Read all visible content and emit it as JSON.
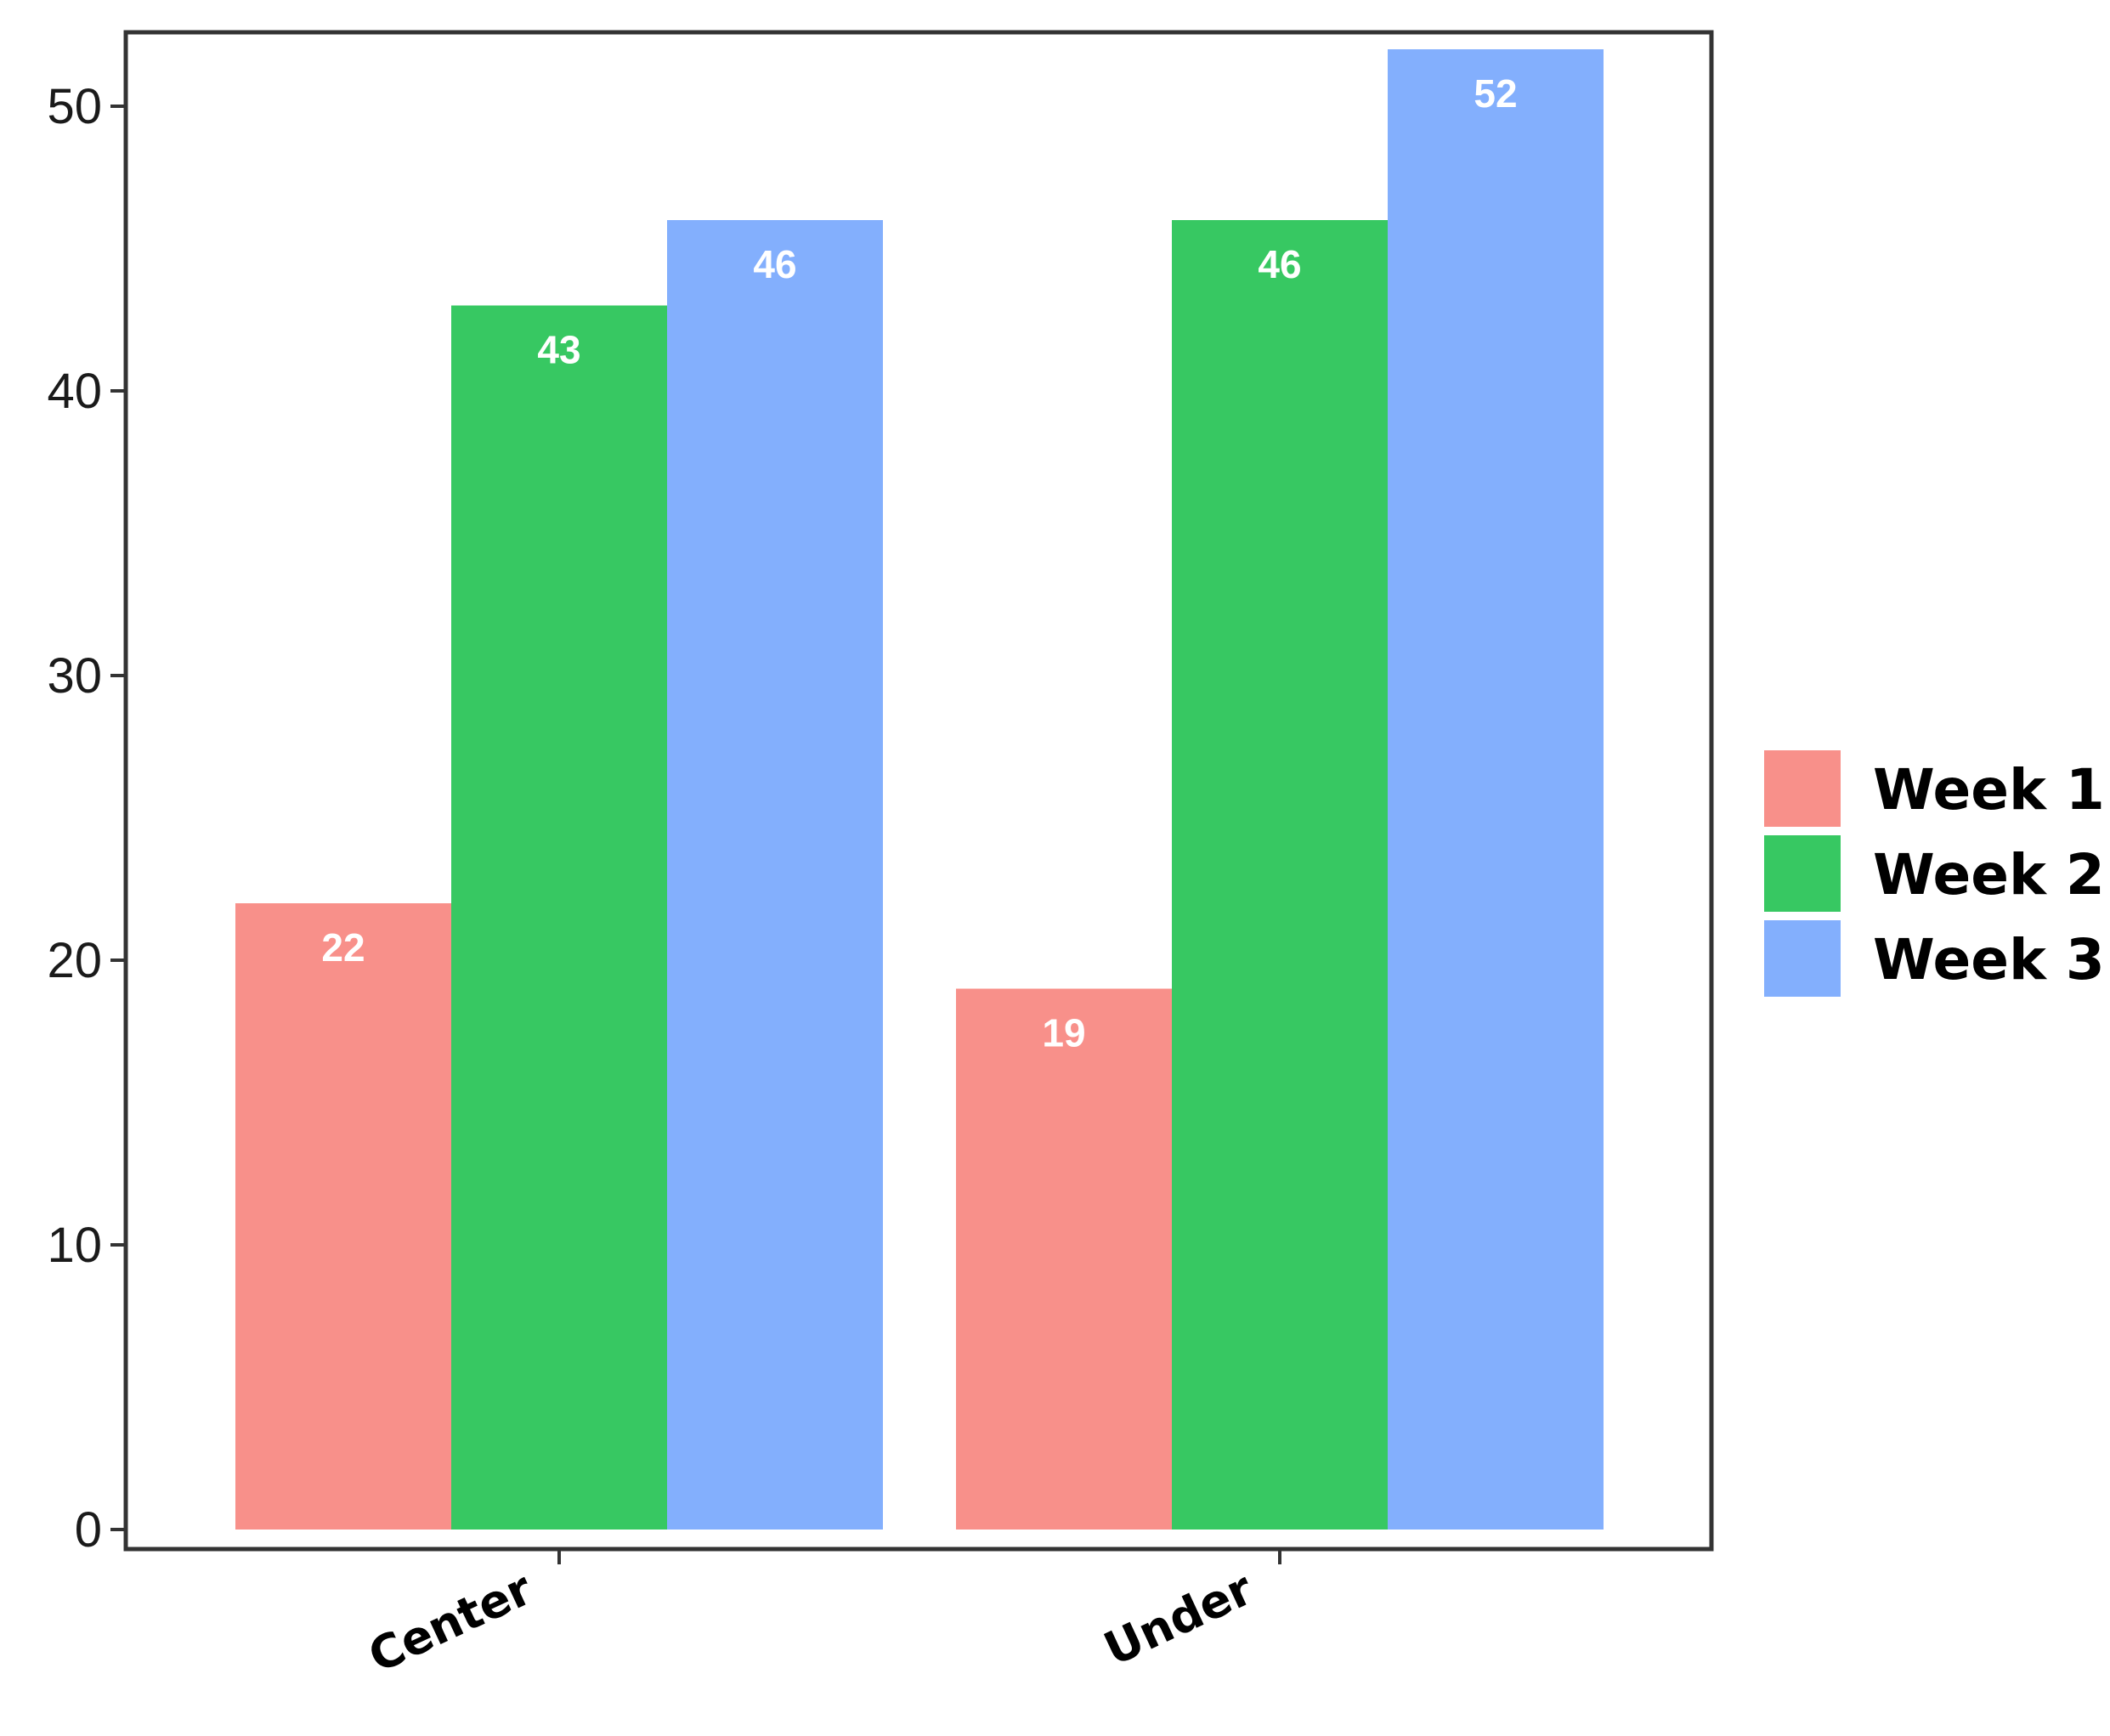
{
  "chart_data": {
    "type": "bar",
    "categories": [
      "Center",
      "Under"
    ],
    "series": [
      {
        "name": "Week 1",
        "values": [
          22,
          19
        ],
        "color": "#F8908A"
      },
      {
        "name": "Week 2",
        "values": [
          43,
          46
        ],
        "color": "#37C862"
      },
      {
        "name": "Week 3",
        "values": [
          46,
          52
        ],
        "color": "#83AFFD"
      }
    ],
    "data_labels": [
      [
        "22",
        "19"
      ],
      [
        "43",
        "46"
      ],
      [
        "46",
        "52"
      ]
    ],
    "y_ticks": [
      0,
      10,
      20,
      30,
      40,
      50
    ],
    "y_tick_labels": [
      "0",
      "10",
      "20",
      "30",
      "40",
      "50"
    ],
    "ylim": [
      0,
      53
    ],
    "title": "",
    "xlabel": "",
    "ylabel": "",
    "grid": false,
    "legend_position": "right",
    "x_tick_rotation_deg": -25
  }
}
